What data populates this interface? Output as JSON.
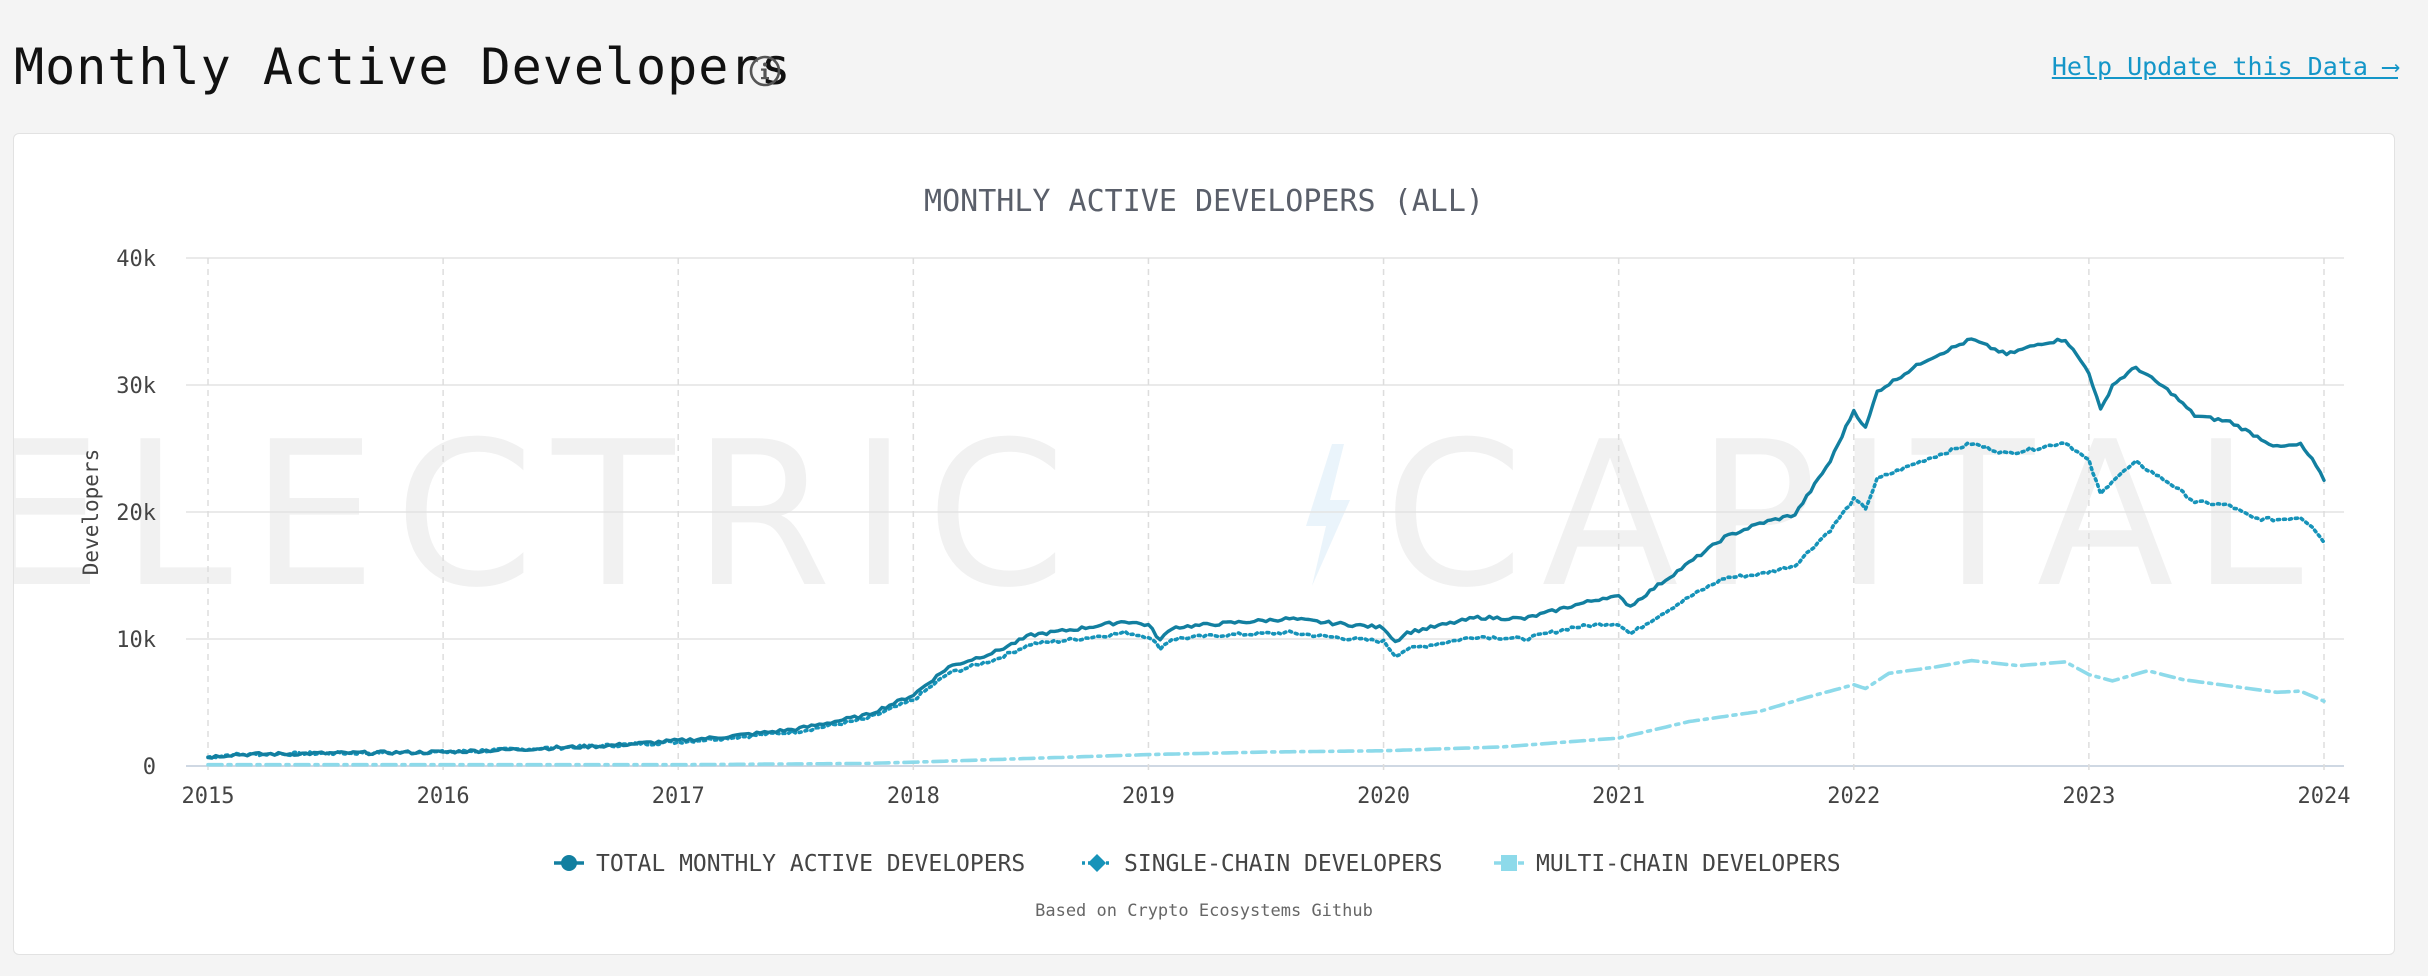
{
  "header": {
    "title": "Monthly Active Developers",
    "help_link": "Help Update this Data ⟶"
  },
  "colors": {
    "total": "#127fa0",
    "single": "#1693b9",
    "multi": "#8ddaea",
    "grid": "#e3e3e3",
    "axis_text": "#444444",
    "title_text": "#5a5f6a",
    "link": "#1496c8"
  },
  "chart_data": {
    "type": "line",
    "title": "MONTHLY ACTIVE DEVELOPERS (ALL)",
    "xlabel": "",
    "ylabel": "Developers",
    "watermark": "ELECTRIC CAPITAL",
    "footnote": "Based on Crypto Ecosystems Github",
    "xlim": [
      2015.0,
      2024.0
    ],
    "ylim": [
      0,
      40000
    ],
    "x_ticks": [
      "2015",
      "2016",
      "2017",
      "2018",
      "2019",
      "2020",
      "2021",
      "2022",
      "2023",
      "2024"
    ],
    "y_ticks": [
      {
        "value": 0,
        "label": "0"
      },
      {
        "value": 10000,
        "label": "10k"
      },
      {
        "value": 20000,
        "label": "20k"
      },
      {
        "value": 30000,
        "label": "30k"
      },
      {
        "value": 40000,
        "label": "40k"
      }
    ],
    "grid": true,
    "legend_position": "bottom",
    "series": [
      {
        "name": "TOTAL MONTHLY ACTIVE DEVELOPERS",
        "style": "solid",
        "marker": "circle",
        "color": "#127fa0",
        "points": [
          [
            2015.0,
            700
          ],
          [
            2015.1,
            900
          ],
          [
            2015.5,
            1000
          ],
          [
            2016.0,
            1100
          ],
          [
            2016.3,
            1300
          ],
          [
            2016.7,
            1600
          ],
          [
            2017.0,
            2000
          ],
          [
            2017.2,
            2300
          ],
          [
            2017.5,
            2900
          ],
          [
            2017.8,
            4000
          ],
          [
            2018.0,
            5600
          ],
          [
            2018.15,
            7800
          ],
          [
            2018.35,
            9000
          ],
          [
            2018.5,
            10300
          ],
          [
            2018.7,
            10800
          ],
          [
            2018.9,
            11400
          ],
          [
            2019.0,
            11100
          ],
          [
            2019.05,
            9900
          ],
          [
            2019.1,
            10900
          ],
          [
            2019.3,
            11200
          ],
          [
            2019.6,
            11600
          ],
          [
            2019.75,
            11300
          ],
          [
            2020.0,
            10900
          ],
          [
            2020.05,
            9800
          ],
          [
            2020.1,
            10500
          ],
          [
            2020.4,
            11700
          ],
          [
            2020.6,
            11600
          ],
          [
            2020.8,
            12600
          ],
          [
            2020.95,
            13300
          ],
          [
            2021.0,
            13300
          ],
          [
            2021.05,
            12600
          ],
          [
            2021.15,
            14000
          ],
          [
            2021.3,
            16000
          ],
          [
            2021.45,
            18000
          ],
          [
            2021.6,
            19100
          ],
          [
            2021.75,
            19800
          ],
          [
            2021.9,
            24000
          ],
          [
            2022.0,
            28000
          ],
          [
            2022.05,
            26600
          ],
          [
            2022.1,
            29500
          ],
          [
            2022.3,
            31900
          ],
          [
            2022.5,
            33600
          ],
          [
            2022.65,
            32400
          ],
          [
            2022.8,
            33300
          ],
          [
            2022.9,
            33600
          ],
          [
            2023.0,
            31000
          ],
          [
            2023.05,
            28000
          ],
          [
            2023.1,
            30000
          ],
          [
            2023.2,
            31400
          ],
          [
            2023.35,
            29400
          ],
          [
            2023.45,
            27600
          ],
          [
            2023.6,
            27100
          ],
          [
            2023.7,
            26100
          ],
          [
            2023.8,
            25100
          ],
          [
            2023.9,
            25300
          ],
          [
            2023.95,
            24100
          ],
          [
            2024.0,
            22500
          ]
        ]
      },
      {
        "name": "SINGLE-CHAIN DEVELOPERS",
        "style": "dotted",
        "marker": "diamond",
        "color": "#1693b9",
        "points": [
          [
            2015.0,
            700
          ],
          [
            2015.1,
            900
          ],
          [
            2015.5,
            1000
          ],
          [
            2016.0,
            1100
          ],
          [
            2016.3,
            1300
          ],
          [
            2016.7,
            1600
          ],
          [
            2017.0,
            1900
          ],
          [
            2017.2,
            2200
          ],
          [
            2017.5,
            2700
          ],
          [
            2017.8,
            3700
          ],
          [
            2018.0,
            5200
          ],
          [
            2018.15,
            7300
          ],
          [
            2018.35,
            8400
          ],
          [
            2018.5,
            9600
          ],
          [
            2018.7,
            10000
          ],
          [
            2018.9,
            10500
          ],
          [
            2019.0,
            10200
          ],
          [
            2019.05,
            9300
          ],
          [
            2019.1,
            10000
          ],
          [
            2019.3,
            10300
          ],
          [
            2019.6,
            10500
          ],
          [
            2019.75,
            10200
          ],
          [
            2020.0,
            9800
          ],
          [
            2020.05,
            8700
          ],
          [
            2020.1,
            9200
          ],
          [
            2020.4,
            10200
          ],
          [
            2020.6,
            10000
          ],
          [
            2020.8,
            10900
          ],
          [
            2020.95,
            11200
          ],
          [
            2021.0,
            11200
          ],
          [
            2021.05,
            10400
          ],
          [
            2021.15,
            11600
          ],
          [
            2021.3,
            13300
          ],
          [
            2021.45,
            14800
          ],
          [
            2021.6,
            15100
          ],
          [
            2021.75,
            15800
          ],
          [
            2021.9,
            18600
          ],
          [
            2022.0,
            21000
          ],
          [
            2022.05,
            20300
          ],
          [
            2022.1,
            22600
          ],
          [
            2022.3,
            24100
          ],
          [
            2022.5,
            25400
          ],
          [
            2022.65,
            24600
          ],
          [
            2022.8,
            25100
          ],
          [
            2022.9,
            25500
          ],
          [
            2023.0,
            24000
          ],
          [
            2023.05,
            21400
          ],
          [
            2023.1,
            22500
          ],
          [
            2023.2,
            23900
          ],
          [
            2023.35,
            22200
          ],
          [
            2023.45,
            20800
          ],
          [
            2023.6,
            20500
          ],
          [
            2023.7,
            19500
          ],
          [
            2023.8,
            19400
          ],
          [
            2023.9,
            19600
          ],
          [
            2023.95,
            18900
          ],
          [
            2024.0,
            17600
          ]
        ]
      },
      {
        "name": "MULTI-CHAIN DEVELOPERS",
        "style": "dashdot",
        "marker": "square",
        "color": "#8ddaea",
        "points": [
          [
            2015.0,
            100
          ],
          [
            2016.0,
            100
          ],
          [
            2017.0,
            100
          ],
          [
            2017.8,
            200
          ],
          [
            2018.0,
            300
          ],
          [
            2018.5,
            600
          ],
          [
            2019.0,
            900
          ],
          [
            2019.5,
            1100
          ],
          [
            2020.0,
            1200
          ],
          [
            2020.5,
            1500
          ],
          [
            2021.0,
            2200
          ],
          [
            2021.3,
            3500
          ],
          [
            2021.6,
            4300
          ],
          [
            2021.8,
            5400
          ],
          [
            2022.0,
            6400
          ],
          [
            2022.05,
            6100
          ],
          [
            2022.15,
            7300
          ],
          [
            2022.35,
            7800
          ],
          [
            2022.5,
            8300
          ],
          [
            2022.7,
            7900
          ],
          [
            2022.9,
            8200
          ],
          [
            2023.0,
            7200
          ],
          [
            2023.1,
            6700
          ],
          [
            2023.25,
            7500
          ],
          [
            2023.4,
            6800
          ],
          [
            2023.6,
            6300
          ],
          [
            2023.8,
            5800
          ],
          [
            2023.9,
            5900
          ],
          [
            2024.0,
            5100
          ]
        ]
      }
    ]
  }
}
